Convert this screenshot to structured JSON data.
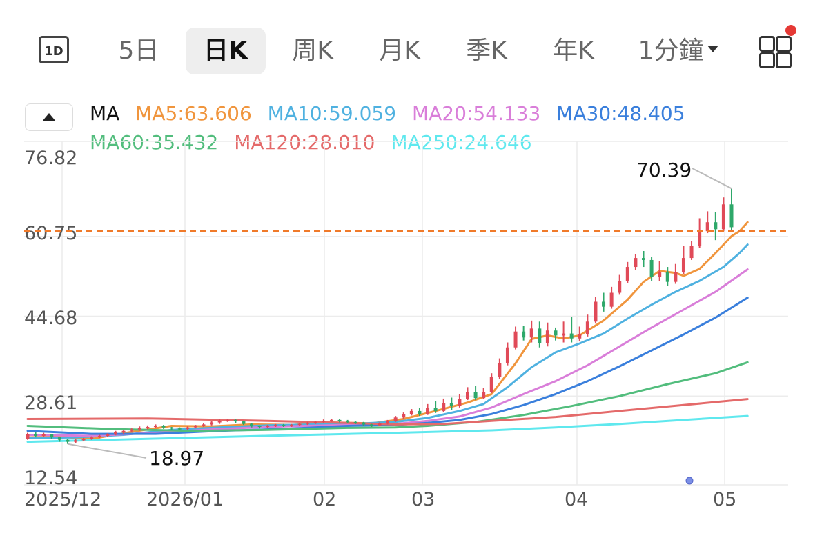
{
  "tabs": {
    "oneday_icon": "1D",
    "items": [
      "5日",
      "日K",
      "周K",
      "月K",
      "季K",
      "年K",
      "1分鐘"
    ],
    "active": "日K",
    "grid_icon": "grid-menu-icon"
  },
  "legend": {
    "ma_label": "MA",
    "row1": [
      "MA5:63.606",
      "MA10:59.059",
      "MA20:54.133",
      "MA30:48.405"
    ],
    "row2": [
      "MA60:35.432",
      "MA120:28.010",
      "MA250:24.646"
    ]
  },
  "colors": {
    "ma5": "#f0953d",
    "ma10": "#4fb1e0",
    "ma20": "#d97ed9",
    "ma30": "#3a7fdc",
    "ma60": "#52bd7d",
    "ma120": "#e46a6a",
    "ma250": "#5fe8ee",
    "up": "#e04a58",
    "down": "#2ea86a",
    "dashed": "#f07a2a"
  },
  "chart_data": {
    "type": "candlestick",
    "y_ticks": [
      "76.82",
      "60.75",
      "44.68",
      "28.61",
      "12.54"
    ],
    "ylim": [
      12.54,
      76.82
    ],
    "x_ticks": [
      "2025/12",
      "2026/01",
      "02",
      "03",
      "04",
      "05"
    ],
    "max_label": "70.39",
    "min_label": "18.97",
    "current_price_line": 61.8,
    "candles": [
      [
        20.0,
        21.0,
        19.8,
        21.2
      ],
      [
        21.0,
        20.6,
        20.3,
        21.3
      ],
      [
        20.6,
        20.9,
        20.4,
        21.2
      ],
      [
        20.9,
        20.3,
        20.0,
        21.0
      ],
      [
        20.3,
        19.8,
        19.4,
        20.4
      ],
      [
        19.8,
        19.4,
        18.97,
        19.9
      ],
      [
        19.4,
        19.7,
        19.2,
        20.0
      ],
      [
        19.7,
        20.0,
        19.5,
        20.2
      ],
      [
        20.0,
        20.3,
        19.8,
        20.5
      ],
      [
        20.3,
        20.6,
        20.1,
        20.8
      ],
      [
        20.6,
        20.9,
        20.4,
        21.1
      ],
      [
        20.9,
        21.3,
        20.7,
        21.6
      ],
      [
        21.3,
        21.6,
        21.0,
        21.8
      ],
      [
        21.6,
        21.9,
        21.3,
        22.1
      ],
      [
        21.9,
        22.2,
        21.6,
        22.5
      ],
      [
        22.2,
        22.4,
        21.9,
        22.7
      ],
      [
        22.4,
        22.6,
        22.1,
        22.9
      ],
      [
        22.6,
        22.3,
        22.0,
        22.8
      ],
      [
        22.3,
        22.1,
        21.8,
        22.4
      ],
      [
        22.1,
        22.0,
        21.8,
        22.3
      ],
      [
        22.0,
        22.3,
        21.8,
        22.5
      ],
      [
        22.3,
        22.6,
        22.1,
        22.8
      ],
      [
        22.6,
        22.9,
        22.4,
        23.1
      ],
      [
        22.9,
        23.3,
        22.7,
        23.6
      ],
      [
        23.3,
        23.6,
        23.0,
        23.9
      ],
      [
        23.6,
        23.8,
        23.4,
        24.0
      ],
      [
        23.8,
        23.5,
        23.2,
        23.9
      ],
      [
        23.5,
        23.0,
        22.8,
        23.6
      ],
      [
        23.0,
        22.6,
        22.3,
        23.1
      ],
      [
        22.6,
        22.4,
        22.1,
        22.7
      ],
      [
        22.4,
        22.6,
        22.2,
        22.8
      ],
      [
        22.6,
        22.8,
        22.4,
        23.0
      ],
      [
        22.8,
        22.6,
        22.4,
        23.0
      ],
      [
        22.6,
        22.8,
        22.4,
        23.0
      ],
      [
        22.8,
        23.0,
        22.6,
        23.2
      ],
      [
        23.0,
        23.2,
        22.8,
        23.4
      ],
      [
        23.2,
        23.4,
        23.0,
        23.6
      ],
      [
        23.4,
        23.6,
        23.2,
        23.9
      ],
      [
        23.6,
        23.8,
        23.4,
        24.0
      ],
      [
        23.8,
        23.6,
        23.3,
        24.0
      ],
      [
        23.6,
        23.4,
        23.1,
        23.8
      ],
      [
        23.4,
        23.3,
        23.0,
        23.5
      ],
      [
        23.3,
        22.9,
        22.6,
        23.4
      ],
      [
        22.9,
        22.7,
        22.4,
        23.0
      ],
      [
        22.7,
        23.1,
        22.6,
        23.3
      ],
      [
        23.1,
        23.6,
        22.9,
        23.8
      ],
      [
        23.6,
        24.3,
        23.4,
        24.6
      ],
      [
        24.3,
        24.9,
        24.0,
        25.3
      ],
      [
        24.9,
        25.6,
        24.7,
        26.0
      ],
      [
        25.6,
        25.0,
        24.6,
        26.2
      ],
      [
        25.0,
        26.2,
        24.8,
        27.0
      ],
      [
        26.2,
        25.6,
        25.2,
        27.6
      ],
      [
        25.6,
        27.2,
        25.4,
        28.1
      ],
      [
        27.2,
        26.6,
        25.8,
        28.3
      ],
      [
        26.6,
        28.0,
        26.3,
        29.0
      ],
      [
        28.0,
        29.4,
        27.8,
        30.4
      ],
      [
        29.4,
        28.2,
        27.8,
        30.6
      ],
      [
        28.2,
        29.4,
        28.0,
        30.2
      ],
      [
        29.4,
        32.4,
        29.2,
        33.2
      ],
      [
        32.4,
        35.2,
        32.0,
        36.2
      ],
      [
        35.2,
        38.4,
        34.8,
        39.4
      ],
      [
        38.4,
        41.6,
        38.0,
        42.6
      ],
      [
        41.6,
        40.4,
        39.8,
        42.8
      ],
      [
        40.4,
        42.2,
        39.4,
        43.8
      ],
      [
        42.2,
        39.2,
        38.4,
        43.6
      ],
      [
        39.2,
        41.8,
        38.6,
        43.4
      ],
      [
        41.8,
        40.8,
        39.8,
        42.4
      ],
      [
        40.8,
        41.2,
        39.4,
        43.6
      ],
      [
        41.2,
        40.2,
        39.4,
        44.6
      ],
      [
        40.2,
        41.0,
        39.6,
        42.6
      ],
      [
        41.0,
        43.6,
        40.6,
        45.0
      ],
      [
        43.6,
        47.6,
        43.2,
        48.6
      ],
      [
        47.6,
        46.6,
        45.6,
        49.4
      ],
      [
        46.6,
        49.4,
        46.2,
        50.6
      ],
      [
        49.4,
        51.8,
        49.0,
        53.0
      ],
      [
        51.8,
        54.6,
        51.4,
        55.6
      ],
      [
        54.6,
        56.4,
        54.0,
        57.2
      ],
      [
        56.4,
        56.0,
        54.6,
        57.8
      ],
      [
        56.0,
        52.6,
        51.8,
        56.6
      ],
      [
        52.6,
        53.6,
        51.8,
        55.8
      ],
      [
        53.6,
        51.6,
        50.8,
        54.6
      ],
      [
        51.6,
        53.6,
        51.2,
        55.2
      ],
      [
        53.6,
        56.4,
        53.2,
        58.8
      ],
      [
        56.4,
        58.8,
        56.0,
        59.8
      ],
      [
        58.8,
        61.8,
        58.4,
        64.4
      ],
      [
        61.8,
        63.6,
        61.4,
        65.8
      ],
      [
        63.6,
        62.2,
        60.0,
        65.6
      ],
      [
        62.2,
        67.2,
        61.8,
        68.6
      ],
      [
        67.2,
        62.6,
        62.0,
        70.39
      ]
    ],
    "ma_series": [
      {
        "key": "ma5",
        "values": [
          [
            0,
            20.3
          ],
          [
            4,
            20.4
          ],
          [
            8,
            20.0
          ],
          [
            13,
            21.4
          ],
          [
            18,
            22.6
          ],
          [
            23,
            22.5
          ],
          [
            28,
            22.9
          ],
          [
            33,
            22.8
          ],
          [
            38,
            23.3
          ],
          [
            43,
            23.1
          ],
          [
            47,
            24.0
          ],
          [
            51,
            25.6
          ],
          [
            55,
            27.3
          ],
          [
            58,
            29.0
          ],
          [
            61,
            35.2
          ],
          [
            63,
            40.1
          ],
          [
            65,
            40.8
          ],
          [
            67,
            40.2
          ],
          [
            69,
            40.8
          ],
          [
            72,
            43.8
          ],
          [
            75,
            48.0
          ],
          [
            77,
            51.6
          ],
          [
            79,
            53.8
          ],
          [
            81,
            53.4
          ],
          [
            82,
            52.8
          ],
          [
            84,
            54.2
          ],
          [
            86,
            57.4
          ],
          [
            88,
            60.8
          ],
          [
            89,
            61.8
          ],
          [
            90,
            63.6
          ]
        ]
      },
      {
        "key": "ma10",
        "values": [
          [
            0,
            20.1
          ],
          [
            6,
            20.3
          ],
          [
            12,
            20.8
          ],
          [
            18,
            21.8
          ],
          [
            24,
            22.3
          ],
          [
            30,
            22.7
          ],
          [
            36,
            22.9
          ],
          [
            42,
            23.1
          ],
          [
            46,
            23.4
          ],
          [
            50,
            24.2
          ],
          [
            54,
            25.6
          ],
          [
            57,
            27.0
          ],
          [
            60,
            30.4
          ],
          [
            63,
            34.4
          ],
          [
            66,
            37.4
          ],
          [
            69,
            39.2
          ],
          [
            72,
            41.2
          ],
          [
            75,
            44.2
          ],
          [
            78,
            47.0
          ],
          [
            81,
            49.6
          ],
          [
            84,
            51.8
          ],
          [
            87,
            54.6
          ],
          [
            89,
            57.4
          ],
          [
            90,
            59.1
          ]
        ]
      },
      {
        "key": "ma20",
        "values": [
          [
            0,
            20.8
          ],
          [
            8,
            20.6
          ],
          [
            16,
            21.2
          ],
          [
            24,
            22.0
          ],
          [
            32,
            22.5
          ],
          [
            40,
            22.8
          ],
          [
            46,
            23.0
          ],
          [
            50,
            23.6
          ],
          [
            54,
            24.5
          ],
          [
            58,
            26.3
          ],
          [
            62,
            29.0
          ],
          [
            66,
            31.6
          ],
          [
            70,
            34.8
          ],
          [
            74,
            38.6
          ],
          [
            78,
            42.4
          ],
          [
            82,
            46.0
          ],
          [
            86,
            49.6
          ],
          [
            90,
            54.1
          ]
        ]
      },
      {
        "key": "ma30",
        "values": [
          [
            0,
            21.6
          ],
          [
            8,
            21.0
          ],
          [
            16,
            21.0
          ],
          [
            24,
            21.6
          ],
          [
            32,
            22.0
          ],
          [
            40,
            22.6
          ],
          [
            46,
            22.8
          ],
          [
            50,
            23.2
          ],
          [
            54,
            23.8
          ],
          [
            58,
            25.0
          ],
          [
            62,
            26.8
          ],
          [
            66,
            29.0
          ],
          [
            70,
            31.6
          ],
          [
            74,
            34.6
          ],
          [
            78,
            37.8
          ],
          [
            82,
            41.0
          ],
          [
            86,
            44.4
          ],
          [
            90,
            48.4
          ]
        ]
      },
      {
        "key": "ma60",
        "values": [
          [
            0,
            22.6
          ],
          [
            10,
            22.0
          ],
          [
            20,
            21.6
          ],
          [
            30,
            21.8
          ],
          [
            40,
            22.2
          ],
          [
            46,
            22.3
          ],
          [
            50,
            22.6
          ],
          [
            56,
            23.4
          ],
          [
            62,
            24.8
          ],
          [
            68,
            26.6
          ],
          [
            74,
            28.6
          ],
          [
            80,
            31.0
          ],
          [
            86,
            33.2
          ],
          [
            90,
            35.4
          ]
        ]
      },
      {
        "key": "ma120",
        "values": [
          [
            0,
            24.0
          ],
          [
            15,
            24.1
          ],
          [
            30,
            23.6
          ],
          [
            40,
            23.2
          ],
          [
            46,
            22.9
          ],
          [
            52,
            23.0
          ],
          [
            58,
            23.6
          ],
          [
            66,
            24.4
          ],
          [
            74,
            25.6
          ],
          [
            82,
            26.8
          ],
          [
            90,
            28.0
          ]
        ]
      },
      {
        "key": "ma250",
        "values": [
          [
            0,
            19.4
          ],
          [
            15,
            20.0
          ],
          [
            30,
            20.6
          ],
          [
            46,
            21.2
          ],
          [
            58,
            21.7
          ],
          [
            66,
            22.3
          ],
          [
            74,
            23.0
          ],
          [
            82,
            23.8
          ],
          [
            90,
            24.6
          ]
        ]
      }
    ]
  }
}
